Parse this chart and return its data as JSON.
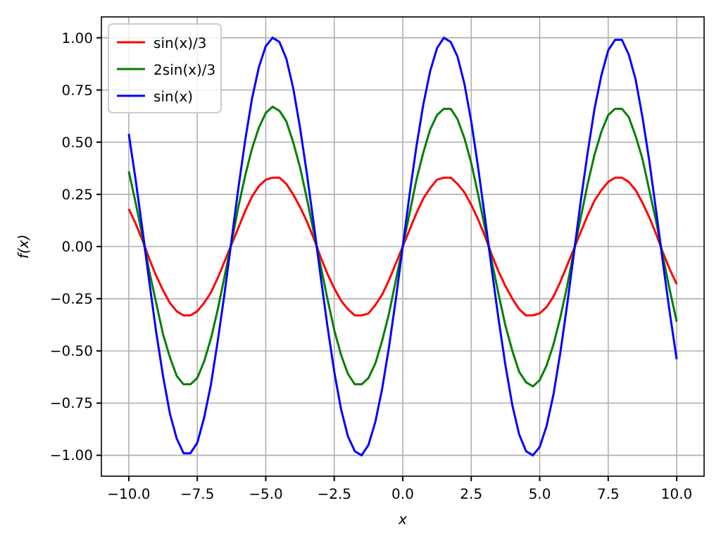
{
  "chart_data": {
    "type": "line",
    "xlabel": "x",
    "ylabel": "f(x)",
    "x": [
      -10,
      -9.75,
      -9.5,
      -9.25,
      -9,
      -8.75,
      -8.5,
      -8.25,
      -8,
      -7.75,
      -7.5,
      -7.25,
      -7,
      -6.75,
      -6.5,
      -6.25,
      -6,
      -5.75,
      -5.5,
      -5.25,
      -5,
      -4.75,
      -4.5,
      -4.25,
      -4,
      -3.75,
      -3.5,
      -3.25,
      -3,
      -2.75,
      -2.5,
      -2.25,
      -2,
      -1.75,
      -1.5,
      -1.25,
      -1,
      -0.75,
      -0.5,
      -0.25,
      0,
      0.25,
      0.5,
      0.75,
      1,
      1.25,
      1.5,
      1.75,
      2,
      2.25,
      2.5,
      2.75,
      3,
      3.25,
      3.5,
      3.75,
      4,
      4.25,
      4.5,
      4.75,
      5,
      5.25,
      5.5,
      5.75,
      6,
      6.25,
      6.5,
      6.75,
      7,
      7.25,
      7.5,
      7.75,
      8,
      8.25,
      8.5,
      8.75,
      9,
      9.25,
      9.5,
      9.75,
      10
    ],
    "series": [
      {
        "name": "sin(x)/3",
        "color": "#ff0000",
        "values": [
          0.18,
          0.11,
          0.03,
          -0.06,
          -0.14,
          -0.21,
          -0.27,
          -0.31,
          -0.33,
          -0.33,
          -0.31,
          -0.27,
          -0.22,
          -0.15,
          -0.07,
          0.01,
          0.09,
          0.17,
          0.24,
          0.29,
          0.32,
          0.33,
          0.33,
          0.3,
          0.25,
          0.19,
          0.12,
          0.04,
          -0.05,
          -0.13,
          -0.2,
          -0.26,
          -0.3,
          -0.33,
          -0.33,
          -0.32,
          -0.28,
          -0.23,
          -0.16,
          -0.08,
          0,
          0.08,
          0.16,
          0.23,
          0.28,
          0.32,
          0.33,
          0.33,
          0.3,
          0.26,
          0.2,
          0.13,
          0.05,
          -0.04,
          -0.12,
          -0.19,
          -0.25,
          -0.3,
          -0.33,
          -0.33,
          -0.32,
          -0.29,
          -0.24,
          -0.17,
          -0.09,
          -0.01,
          0.07,
          0.15,
          0.22,
          0.27,
          0.31,
          0.33,
          0.33,
          0.31,
          0.27,
          0.21,
          0.14,
          0.06,
          -0.03,
          -0.11,
          -0.18
        ]
      },
      {
        "name": "2sin(x)/3",
        "color": "#008000",
        "values": [
          0.36,
          0.21,
          0.05,
          -0.12,
          -0.27,
          -0.42,
          -0.53,
          -0.62,
          -0.66,
          -0.66,
          -0.63,
          -0.55,
          -0.44,
          -0.3,
          -0.14,
          0.02,
          0.19,
          0.34,
          0.47,
          0.57,
          0.64,
          0.67,
          0.65,
          0.6,
          0.5,
          0.38,
          0.23,
          0.07,
          -0.09,
          -0.25,
          -0.4,
          -0.52,
          -0.61,
          -0.66,
          -0.66,
          -0.63,
          -0.56,
          -0.45,
          -0.32,
          -0.16,
          0,
          0.16,
          0.32,
          0.45,
          0.56,
          0.63,
          0.66,
          0.66,
          0.61,
          0.52,
          0.4,
          0.25,
          0.09,
          -0.07,
          -0.23,
          -0.38,
          -0.5,
          -0.6,
          -0.65,
          -0.67,
          -0.64,
          -0.57,
          -0.47,
          -0.34,
          -0.19,
          -0.02,
          0.14,
          0.3,
          0.44,
          0.55,
          0.63,
          0.66,
          0.66,
          0.62,
          0.53,
          0.42,
          0.27,
          0.12,
          -0.05,
          -0.21,
          -0.36
        ]
      },
      {
        "name": "sin(x)",
        "color": "#0000ff",
        "values": [
          0.54,
          0.32,
          0.08,
          -0.17,
          -0.41,
          -0.62,
          -0.8,
          -0.92,
          -0.99,
          -0.99,
          -0.94,
          -0.82,
          -0.66,
          -0.45,
          -0.22,
          0.03,
          0.28,
          0.51,
          0.71,
          0.86,
          0.96,
          1.0,
          0.98,
          0.9,
          0.76,
          0.57,
          0.35,
          0.11,
          -0.14,
          -0.38,
          -0.6,
          -0.78,
          -0.91,
          -0.98,
          -1.0,
          -0.95,
          -0.84,
          -0.68,
          -0.48,
          -0.25,
          0,
          0.25,
          0.48,
          0.68,
          0.84,
          0.95,
          1.0,
          0.98,
          0.91,
          0.78,
          0.6,
          0.38,
          0.14,
          -0.11,
          -0.35,
          -0.57,
          -0.76,
          -0.9,
          -0.98,
          -1.0,
          -0.96,
          -0.86,
          -0.71,
          -0.51,
          -0.28,
          -0.03,
          0.22,
          0.45,
          0.66,
          0.82,
          0.94,
          0.99,
          0.99,
          0.92,
          0.8,
          0.62,
          0.41,
          0.17,
          -0.08,
          -0.32,
          -0.54
        ]
      }
    ],
    "xlim": [
      -11,
      11
    ],
    "ylim": [
      -1.1,
      1.1
    ],
    "xticks": [
      {
        "value": -10,
        "label": "−10.0"
      },
      {
        "value": -7.5,
        "label": "−7.5"
      },
      {
        "value": -5,
        "label": "−5.0"
      },
      {
        "value": -2.5,
        "label": "−2.5"
      },
      {
        "value": 0,
        "label": "0.0"
      },
      {
        "value": 2.5,
        "label": "2.5"
      },
      {
        "value": 5,
        "label": "5.0"
      },
      {
        "value": 7.5,
        "label": "7.5"
      },
      {
        "value": 10,
        "label": "10.0"
      }
    ],
    "yticks": [
      {
        "value": -1,
        "label": "−1.00"
      },
      {
        "value": -0.75,
        "label": "−0.75"
      },
      {
        "value": -0.5,
        "label": "−0.50"
      },
      {
        "value": -0.25,
        "label": "−0.25"
      },
      {
        "value": 0,
        "label": "0.00"
      },
      {
        "value": 0.25,
        "label": "0.25"
      },
      {
        "value": 0.5,
        "label": "0.50"
      },
      {
        "value": 0.75,
        "label": "0.75"
      },
      {
        "value": 1,
        "label": "1.00"
      }
    ],
    "grid": true,
    "legend": "top left",
    "marker": "none",
    "line_style": "solid"
  }
}
